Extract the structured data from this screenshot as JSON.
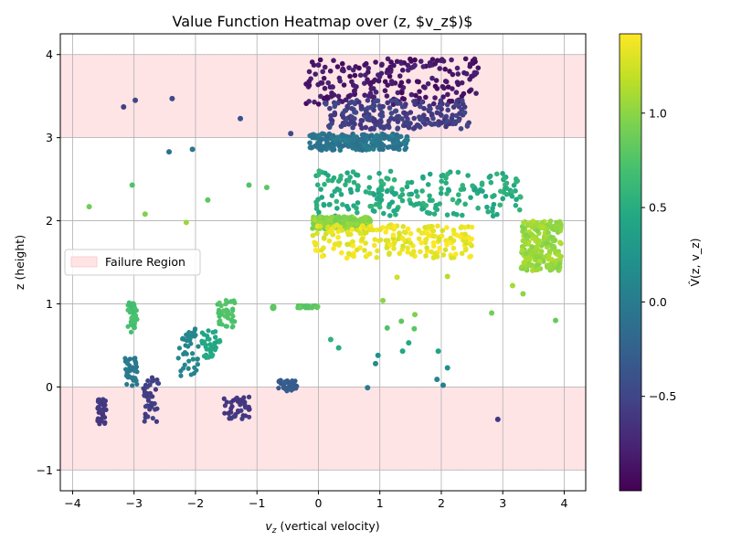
{
  "chart_data": {
    "type": "scatter",
    "title": "Value Function Heatmap over (z, $v_z$)$",
    "xlabel_main": "v",
    "xlabel_sub": "z",
    "xlabel_rest": " (vertical velocity)",
    "ylabel": "z (height)",
    "xlim": [
      -4.2,
      4.35
    ],
    "ylim": [
      -1.25,
      4.25
    ],
    "x_ticks": [
      -4,
      -3,
      -2,
      -1,
      0,
      1,
      2,
      3,
      4
    ],
    "y_ticks": [
      -1,
      0,
      1,
      2,
      3,
      4
    ],
    "grid": true,
    "legend": {
      "placement": "center-left",
      "entries": [
        "Failure Region"
      ]
    },
    "failure_regions": [
      {
        "y_range": [
          3,
          4
        ],
        "x_range": [
          -4,
          4
        ],
        "color": "#ffe4e6"
      },
      {
        "y_range": [
          -1,
          0
        ],
        "x_range": [
          -4,
          4
        ],
        "color": "#ffe4e6"
      }
    ],
    "colorbar": {
      "label": "V̂(z, v_z)",
      "range": [
        -1.0,
        1.42
      ],
      "ticks": [
        -0.5,
        0.0,
        0.5,
        1.0
      ],
      "tick_labels": [
        "−0.5",
        "0.0",
        "0.5",
        "1.0"
      ],
      "colormap": "viridis"
    },
    "point_groups": [
      {
        "desc": "upper purple fan",
        "x": [
          -0.2,
          2.6
        ],
        "y": [
          3.4,
          3.95
        ],
        "v": -0.85
      },
      {
        "desc": "upper blue band",
        "x": [
          0.1,
          2.45
        ],
        "y": [
          3.1,
          3.45
        ],
        "v": -0.55
      },
      {
        "desc": "teal band",
        "x": [
          -0.15,
          1.45
        ],
        "y": [
          2.85,
          3.05
        ],
        "v": -0.05
      },
      {
        "desc": "green band",
        "x": [
          -0.1,
          3.3
        ],
        "y": [
          2.05,
          2.6
        ],
        "v": 0.5
      },
      {
        "desc": "light green cluster",
        "x": [
          -0.1,
          0.85
        ],
        "y": [
          1.9,
          2.05
        ],
        "v": 1.0
      },
      {
        "desc": "yellow fan",
        "x": [
          -0.1,
          2.5
        ],
        "y": [
          1.55,
          1.95
        ],
        "v": 1.35
      },
      {
        "desc": "right lobe",
        "x": [
          3.3,
          3.95
        ],
        "y": [
          1.4,
          2.0
        ],
        "v": 1.05
      }
    ],
    "isolated_points": [
      {
        "x": -3.17,
        "y": 3.37,
        "v": -0.55
      },
      {
        "x": -2.98,
        "y": 3.45,
        "v": -0.5
      },
      {
        "x": -2.38,
        "y": 3.47,
        "v": -0.45
      },
      {
        "x": -1.27,
        "y": 3.23,
        "v": -0.4
      },
      {
        "x": -0.45,
        "y": 3.05,
        "v": -0.45
      },
      {
        "x": -2.43,
        "y": 2.83,
        "v": -0.1
      },
      {
        "x": -2.05,
        "y": 2.86,
        "v": -0.05
      },
      {
        "x": -3.73,
        "y": 2.17,
        "v": 0.9
      },
      {
        "x": -3.03,
        "y": 2.43,
        "v": 0.75
      },
      {
        "x": -2.82,
        "y": 2.08,
        "v": 0.95
      },
      {
        "x": -2.15,
        "y": 1.98,
        "v": 1.05
      },
      {
        "x": -1.8,
        "y": 2.25,
        "v": 0.8
      },
      {
        "x": -1.13,
        "y": 2.43,
        "v": 0.75
      },
      {
        "x": -0.84,
        "y": 2.4,
        "v": 0.8
      },
      {
        "x": 1.28,
        "y": 1.32,
        "v": 1.25
      },
      {
        "x": 2.1,
        "y": 1.33,
        "v": 1.15
      },
      {
        "x": 1.05,
        "y": 1.04,
        "v": 1.0
      },
      {
        "x": 1.57,
        "y": 0.87,
        "v": 0.95
      },
      {
        "x": 1.35,
        "y": 0.79,
        "v": 0.8
      },
      {
        "x": 1.12,
        "y": 0.71,
        "v": 0.75
      },
      {
        "x": 1.56,
        "y": 0.7,
        "v": 0.8
      },
      {
        "x": 3.16,
        "y": 1.22,
        "v": 1.1
      },
      {
        "x": 3.33,
        "y": 1.12,
        "v": 1.0
      },
      {
        "x": 2.82,
        "y": 0.89,
        "v": 0.9
      },
      {
        "x": 3.86,
        "y": 0.8,
        "v": 0.85
      },
      {
        "x": 0.2,
        "y": 0.57,
        "v": 0.55
      },
      {
        "x": 0.33,
        "y": 0.47,
        "v": 0.5
      },
      {
        "x": 1.47,
        "y": 0.53,
        "v": 0.45
      },
      {
        "x": 1.95,
        "y": 0.43,
        "v": 0.4
      },
      {
        "x": 1.37,
        "y": 0.43,
        "v": 0.45
      },
      {
        "x": 0.97,
        "y": 0.38,
        "v": 0.2
      },
      {
        "x": 0.93,
        "y": 0.28,
        "v": 0.15
      },
      {
        "x": 2.1,
        "y": 0.23,
        "v": 0.2
      },
      {
        "x": 1.93,
        "y": 0.09,
        "v": 0.1
      },
      {
        "x": 2.03,
        "y": 0.02,
        "v": 0.05
      },
      {
        "x": 0.8,
        "y": -0.01,
        "v": 0.0
      },
      {
        "x": 2.92,
        "y": -0.39,
        "v": -0.6
      }
    ],
    "clusters": [
      {
        "x": [
          -3.1,
          -2.95
        ],
        "y": [
          0.65,
          1.02
        ],
        "v": 0.7
      },
      {
        "x": [
          -1.65,
          -1.35
        ],
        "y": [
          0.72,
          1.05
        ],
        "v": 0.75
      },
      {
        "x": [
          -0.75,
          -0.72
        ],
        "y": [
          0.94,
          0.97
        ],
        "v": 0.8
      },
      {
        "x": [
          -0.35,
          -0.0
        ],
        "y": [
          0.95,
          0.98
        ],
        "v": 0.8
      },
      {
        "x": [
          -1.9,
          -1.6
        ],
        "y": [
          0.35,
          0.68
        ],
        "v": 0.45
      },
      {
        "x": [
          -2.3,
          -1.95
        ],
        "y": [
          0.12,
          0.7
        ],
        "v": 0.1
      },
      {
        "x": [
          -3.15,
          -2.95
        ],
        "y": [
          0.0,
          0.35
        ],
        "v": 0.0
      },
      {
        "x": [
          -0.65,
          -0.35
        ],
        "y": [
          -0.05,
          0.08
        ],
        "v": -0.3
      },
      {
        "x": [
          -2.85,
          -2.6
        ],
        "y": [
          -0.45,
          0.12
        ],
        "v": -0.55
      },
      {
        "x": [
          -3.6,
          -3.45
        ],
        "y": [
          -0.45,
          -0.15
        ],
        "v": -0.6
      },
      {
        "x": [
          -1.55,
          -1.1
        ],
        "y": [
          -0.4,
          -0.12
        ],
        "v": -0.6
      }
    ]
  }
}
